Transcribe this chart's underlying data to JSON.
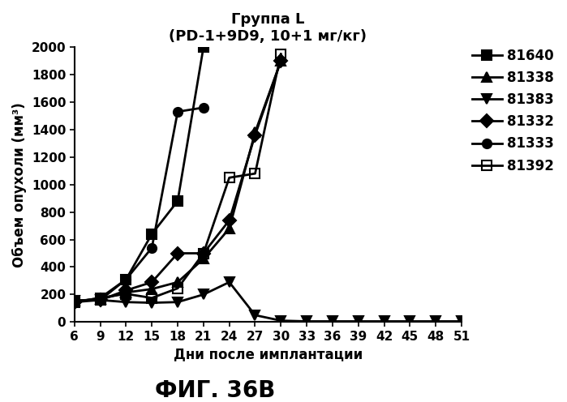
{
  "title_line1": "Группа L",
  "title_line2": "(PD-1+9D9, 10+1 мг/кг)",
  "xlabel": "Дни после имплантации",
  "ylabel": "Объем опухоли (мм³)",
  "fig_label": "ФИГ. 36В",
  "xticks": [
    6,
    9,
    12,
    15,
    18,
    21,
    24,
    27,
    30,
    33,
    36,
    39,
    42,
    45,
    48,
    51
  ],
  "yticks": [
    0,
    200,
    400,
    600,
    800,
    1000,
    1200,
    1400,
    1600,
    1800,
    2000
  ],
  "ylim": [
    0,
    2000
  ],
  "xlim": [
    6,
    51
  ],
  "series": [
    {
      "label": "81640",
      "marker": "s",
      "fillstyle": "full",
      "x": [
        6,
        9,
        12,
        15,
        18,
        21
      ],
      "y": [
        155,
        160,
        310,
        640,
        880,
        2000
      ]
    },
    {
      "label": "81338",
      "marker": "^",
      "fillstyle": "full",
      "x": [
        6,
        9,
        12,
        15,
        18,
        21,
        24,
        27,
        30
      ],
      "y": [
        155,
        165,
        215,
        240,
        290,
        460,
        680,
        1380,
        1900
      ]
    },
    {
      "label": "81383",
      "marker": "v",
      "fillstyle": "full",
      "x": [
        6,
        9,
        12,
        15,
        18,
        21,
        24,
        27,
        30,
        33,
        36,
        39,
        42,
        45,
        48,
        51
      ],
      "y": [
        155,
        160,
        145,
        140,
        145,
        200,
        290,
        50,
        10,
        5,
        5,
        5,
        5,
        5,
        5,
        5
      ]
    },
    {
      "label": "81332",
      "marker": "D",
      "fillstyle": "full",
      "x": [
        6,
        9,
        12,
        15,
        18,
        21,
        24,
        27,
        30
      ],
      "y": [
        145,
        160,
        230,
        290,
        500,
        500,
        740,
        1360,
        1900
      ]
    },
    {
      "label": "81333",
      "marker": "o",
      "fillstyle": "full",
      "x": [
        6,
        9,
        12,
        15,
        18,
        21
      ],
      "y": [
        145,
        175,
        310,
        540,
        1530,
        1560
      ]
    },
    {
      "label": "81392",
      "marker": "s",
      "fillstyle": "none",
      "x": [
        6,
        9,
        12,
        15,
        18,
        21,
        24,
        27,
        30
      ],
      "y": [
        145,
        175,
        205,
        175,
        245,
        500,
        1050,
        1080,
        1950
      ]
    }
  ],
  "color": "#000000",
  "background_color": "#ffffff",
  "linewidth": 2.0,
  "markersize": 8,
  "title_fontsize": 13,
  "label_fontsize": 12,
  "tick_fontsize": 11,
  "legend_fontsize": 12,
  "fig_label_fontsize": 20
}
